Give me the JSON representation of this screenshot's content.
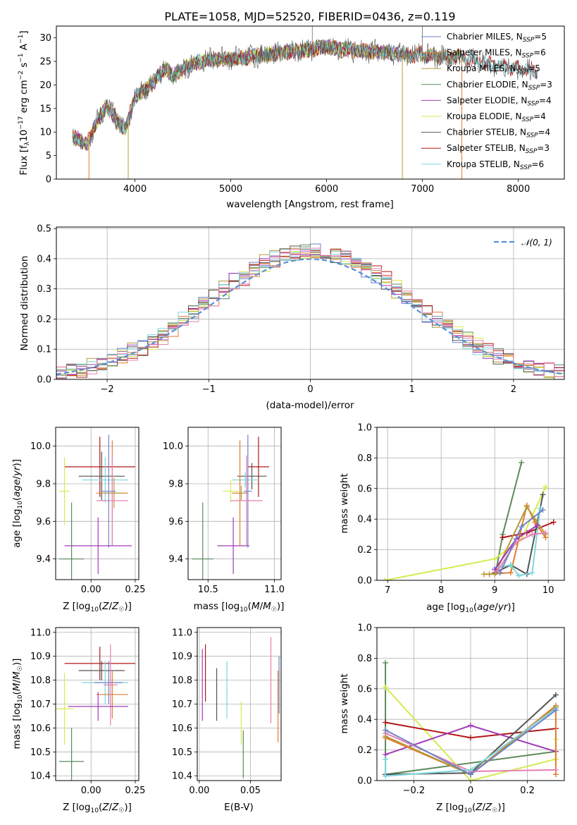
{
  "colors": {
    "Chabrier MILES": "#6f82c9",
    "Salpeter MILES": "#e07c2e",
    "Kroupa MILES": "#b89a3a",
    "Chabrier ELODIE": "#5c8a5c",
    "Salpeter ELODIE": "#a23bb8",
    "Kroupa ELODIE": "#d6ea4e",
    "Chabrier STELIB": "#555555",
    "Salpeter STELIB": "#b01818",
    "Kroupa STELIB": "#7dd6dc",
    "pink": "#e87fb4",
    "normal": "#5b8fd6"
  },
  "spectrum_data": {
    "type": "line",
    "title": "PLATE=1058, MJD=52520, FIBERID=0436, z=0.119",
    "xlabel": "wavelength [Angstrom, rest frame]",
    "ylabel": "Flux [f_λ 10^-17 erg cm^-2 s^-1 A^-1]",
    "xlim": [
      3180,
      8480
    ],
    "ylim": [
      0,
      32.5
    ],
    "xticks": [
      4000,
      5000,
      6000,
      7000,
      8000
    ],
    "yticks": [
      0,
      5,
      10,
      15,
      20,
      25,
      30
    ],
    "envelope": {
      "x": [
        3350,
        3500,
        3600,
        3700,
        3800,
        3900,
        4000,
        4100,
        4200,
        4300,
        4400,
        4600,
        4800,
        5000,
        5200,
        5400,
        5600,
        5800,
        6000,
        6200,
        6400,
        6600,
        6800,
        7000,
        7200,
        7400,
        7600,
        7800,
        8000,
        8200
      ],
      "y": [
        9.0,
        7.5,
        12.0,
        15.5,
        13.0,
        10.5,
        17.5,
        19.0,
        20.5,
        23.5,
        22.0,
        24.5,
        25.5,
        25.5,
        26.0,
        26.5,
        27.0,
        27.5,
        28.0,
        27.5,
        27.2,
        27.0,
        26.5,
        26.5,
        26.0,
        26.0,
        25.0,
        24.0,
        23.5,
        23.0
      ]
    },
    "series": [
      {
        "name": "Chabrier MILES, N_SSP=5",
        "color_key": "Chabrier MILES"
      },
      {
        "name": "Salpeter MILES, N_SSP=6",
        "color_key": "Salpeter MILES"
      },
      {
        "name": "Kroupa MILES, N_SSP=5",
        "color_key": "Kroupa MILES"
      },
      {
        "name": "Chabrier ELODIE, N_SSP=3",
        "color_key": "Chabrier ELODIE"
      },
      {
        "name": "Salpeter ELODIE, N_SSP=4",
        "color_key": "Salpeter ELODIE"
      },
      {
        "name": "Kroupa ELODIE, N_SSP=4",
        "color_key": "Kroupa ELODIE"
      },
      {
        "name": "Chabrier STELIB, N_SSP=4",
        "color_key": "Chabrier STELIB"
      },
      {
        "name": "Salpeter STELIB, N_SSP=3",
        "color_key": "Salpeter STELIB"
      },
      {
        "name": "Kroupa STELIB, N_SSP=6",
        "color_key": "Kroupa STELIB"
      }
    ]
  },
  "residual_data": {
    "type": "histogram",
    "xlabel": "(data-model)/error",
    "ylabel": "Normed distribution",
    "xlim": [
      -2.5,
      2.5
    ],
    "ylim": [
      0,
      0.505
    ],
    "xticks": [
      -2,
      -1,
      0,
      1,
      2
    ],
    "yticks": [
      0.0,
      0.1,
      0.2,
      0.3,
      0.4,
      0.5
    ],
    "legend": "N(0,1)",
    "bin_width": 0.1
  },
  "panels": {
    "age_vs_Z": {
      "xlabel": "Z [log10(Z/Z☉)]",
      "ylabel": "age [log10(age/yr)]",
      "xlim": [
        -0.2,
        0.27
      ],
      "ylim": [
        9.29,
        10.1
      ],
      "xticks": [
        0.0,
        0.25
      ],
      "yticks": [
        9.4,
        9.6,
        9.8,
        10.0
      ]
    },
    "age_vs_mass": {
      "xlabel": "mass [log10(M/M☉)]",
      "ylabel": "",
      "xlim": [
        10.35,
        11.05
      ],
      "ylim": [
        9.29,
        10.1
      ],
      "xticks": [
        10.5,
        11.0
      ],
      "yticks": [
        9.4,
        9.6,
        9.8,
        10.0
      ]
    },
    "mass_weight_vs_age": {
      "xlabel": "age [log10(age/yr)]",
      "ylabel": "mass weight",
      "xlim": [
        6.8,
        10.3
      ],
      "ylim": [
        0,
        1.0
      ],
      "xticks": [
        7,
        8,
        9,
        10
      ],
      "yticks": [
        0.0,
        0.2,
        0.4,
        0.6,
        0.8,
        1.0
      ]
    },
    "mass_vs_Z": {
      "xlabel": "Z [log10(Z/Z☉)]",
      "ylabel": "mass [log10(M/M☉)]",
      "xlim": [
        -0.2,
        0.27
      ],
      "ylim": [
        10.38,
        11.02
      ],
      "xticks": [
        0.0,
        0.25
      ],
      "yticks": [
        10.4,
        10.5,
        10.6,
        10.7,
        10.8,
        10.9,
        11.0
      ]
    },
    "mass_vs_ebv": {
      "xlabel": "E(B-V)",
      "ylabel": "",
      "xlim": [
        -0.002,
        0.08
      ],
      "ylim": [
        10.38,
        11.02
      ],
      "xticks": [
        0.0,
        0.05
      ],
      "yticks": [
        10.4,
        10.5,
        10.6,
        10.7,
        10.8,
        10.9,
        11.0
      ]
    },
    "mass_weight_vs_Z": {
      "xlabel": "Z [log10(Z/Z☉)]",
      "ylabel": "mass weight",
      "xlim": [
        -0.33,
        0.33
      ],
      "ylim": [
        0,
        1.0
      ],
      "xticks": [
        -0.2,
        0.0,
        0.2
      ],
      "yticks": [
        0.0,
        0.2,
        0.4,
        0.6,
        0.8,
        1.0
      ]
    }
  },
  "chart_data": [
    {
      "panel": "age_vs_Z",
      "type": "errorbar",
      "points": [
        {
          "c": "Salpeter STELIB",
          "x": 0.05,
          "y": 9.89,
          "xerr": 0.2,
          "yerr": 0.16
        },
        {
          "c": "Chabrier STELIB",
          "x": 0.06,
          "y": 9.84,
          "xerr": 0.13,
          "yerr": 0.13
        },
        {
          "c": "Kroupa STELIB",
          "x": 0.08,
          "y": 9.82,
          "xerr": 0.13,
          "yerr": 0.12
        },
        {
          "c": "Kroupa ELODIE",
          "x": -0.15,
          "y": 9.76,
          "xerr": 0.03,
          "yerr": 0.18
        },
        {
          "c": "Salpeter MILES",
          "x": 0.12,
          "y": 9.75,
          "xerr": 0.09,
          "yerr": 0.28
        },
        {
          "c": "Kroupa MILES",
          "x": 0.13,
          "y": 9.75,
          "xerr": 0.05,
          "yerr": 0.08
        },
        {
          "c": "pink",
          "x": 0.12,
          "y": 9.71,
          "xerr": 0.09,
          "yerr": 0.24
        },
        {
          "c": "Chabrier MILES",
          "x": 0.1,
          "y": 9.76,
          "xerr": 0.04,
          "yerr": 0.3
        },
        {
          "c": "Salpeter ELODIE",
          "x": 0.04,
          "y": 9.47,
          "xerr": 0.19,
          "yerr": 0.15
        },
        {
          "c": "Chabrier ELODIE",
          "x": -0.11,
          "y": 9.4,
          "xerr": 0.07,
          "yerr": 0.3
        }
      ]
    },
    {
      "panel": "age_vs_mass",
      "type": "errorbar",
      "points": [
        {
          "c": "Salpeter STELIB",
          "x": 10.88,
          "y": 9.89,
          "xerr": 0.08,
          "yerr": 0.16
        },
        {
          "c": "Chabrier STELIB",
          "x": 10.83,
          "y": 9.84,
          "xerr": 0.11,
          "yerr": 0.07
        },
        {
          "c": "Kroupa STELIB",
          "x": 10.78,
          "y": 9.82,
          "xerr": 0.1,
          "yerr": 0.04
        },
        {
          "c": "Kroupa ELODIE",
          "x": 10.67,
          "y": 9.76,
          "xerr": 0.06,
          "yerr": 0.06
        },
        {
          "c": "Salpeter MILES",
          "x": 10.74,
          "y": 9.75,
          "xerr": 0.06,
          "yerr": 0.28
        },
        {
          "c": "Kroupa MILES",
          "x": 10.75,
          "y": 9.75,
          "xerr": 0.04,
          "yerr": 0.04
        },
        {
          "c": "pink",
          "x": 10.79,
          "y": 9.71,
          "xerr": 0.12,
          "yerr": 0.24
        },
        {
          "c": "Chabrier MILES",
          "x": 10.8,
          "y": 9.76,
          "xerr": 0.03,
          "yerr": 0.3
        },
        {
          "c": "Salpeter ELODIE",
          "x": 10.69,
          "y": 9.47,
          "xerr": 0.12,
          "yerr": 0.15
        },
        {
          "c": "Chabrier ELODIE",
          "x": 10.46,
          "y": 9.4,
          "xerr": 0.08,
          "yerr": 0.3
        }
      ]
    },
    {
      "panel": "mass_weight_vs_age",
      "type": "line",
      "series": [
        {
          "c": "Chabrier ELODIE",
          "x": [
            9.02,
            9.15,
            9.5
          ],
          "y": [
            0.05,
            0.3,
            0.77
          ]
        },
        {
          "c": "Kroupa ELODIE",
          "x": [
            6.95,
            9.0,
            9.5,
            9.95
          ],
          "y": [
            0.0,
            0.14,
            0.27,
            0.61
          ]
        },
        {
          "c": "Salpeter STELIB",
          "x": [
            9.15,
            9.6,
            10.1
          ],
          "y": [
            0.28,
            0.31,
            0.38
          ]
        },
        {
          "c": "Chabrier STELIB",
          "x": [
            9.0,
            9.3,
            9.6,
            9.9
          ],
          "y": [
            0.05,
            0.1,
            0.04,
            0.56
          ]
        },
        {
          "c": "Salpeter MILES",
          "x": [
            8.9,
            9.3,
            9.6,
            9.75,
            9.95
          ],
          "y": [
            0.04,
            0.05,
            0.49,
            0.38,
            0.28
          ]
        },
        {
          "c": "Kroupa MILES",
          "x": [
            8.8,
            9.0,
            9.6,
            9.95
          ],
          "y": [
            0.04,
            0.04,
            0.48,
            0.3
          ]
        },
        {
          "c": "Kroupa STELIB",
          "x": [
            9.0,
            9.3,
            9.45,
            9.7,
            9.85
          ],
          "y": [
            0.08,
            0.1,
            0.03,
            0.05,
            0.47
          ]
        },
        {
          "c": "Salpeter ELODIE",
          "x": [
            9.0,
            9.4,
            9.8
          ],
          "y": [
            0.07,
            0.27,
            0.36
          ]
        },
        {
          "c": "pink",
          "x": [
            9.05,
            9.4,
            9.7,
            9.95
          ],
          "y": [
            0.06,
            0.25,
            0.3,
            0.31
          ]
        },
        {
          "c": "Chabrier MILES",
          "x": [
            9.1,
            9.5,
            9.9
          ],
          "y": [
            0.05,
            0.35,
            0.46
          ]
        }
      ]
    },
    {
      "panel": "mass_vs_Z",
      "type": "errorbar",
      "points": [
        {
          "c": "Salpeter STELIB",
          "x": 0.05,
          "y": 10.87,
          "xerr": 0.2,
          "yerr": 0.07
        },
        {
          "c": "Chabrier STELIB",
          "x": 0.06,
          "y": 10.84,
          "xerr": 0.13,
          "yerr": 0.04
        },
        {
          "c": "Kroupa STELIB",
          "x": 0.08,
          "y": 10.79,
          "xerr": 0.13,
          "yerr": 0.09
        },
        {
          "c": "Chabrier MILES",
          "x": 0.1,
          "y": 10.79,
          "xerr": 0.08,
          "yerr": 0.09
        },
        {
          "c": "Salpeter MILES",
          "x": 0.12,
          "y": 10.74,
          "xerr": 0.09,
          "yerr": 0.1
        },
        {
          "c": "pink",
          "x": 0.11,
          "y": 10.78,
          "xerr": 0.04,
          "yerr": 0.17
        },
        {
          "c": "Salpeter ELODIE",
          "x": 0.04,
          "y": 10.69,
          "xerr": 0.17,
          "yerr": 0.06
        },
        {
          "c": "Kroupa ELODIE",
          "x": -0.15,
          "y": 10.68,
          "xerr": 0.05,
          "yerr": 0.15
        },
        {
          "c": "Chabrier ELODIE",
          "x": -0.11,
          "y": 10.46,
          "xerr": 0.07,
          "yerr": 0.14
        }
      ]
    },
    {
      "panel": "mass_vs_ebv",
      "type": "errorbar",
      "points": [
        {
          "c": "Salpeter STELIB",
          "x": 0.006,
          "y": 10.83,
          "xerr": 0,
          "yerr": 0.12
        },
        {
          "c": "Salpeter ELODIE",
          "x": 0.003,
          "y": 10.78,
          "xerr": 0,
          "yerr": 0.15
        },
        {
          "c": "Chabrier STELIB",
          "x": 0.017,
          "y": 10.74,
          "xerr": 0,
          "yerr": 0.11
        },
        {
          "c": "Kroupa STELIB",
          "x": 0.027,
          "y": 10.76,
          "xerr": 0,
          "yerr": 0.12
        },
        {
          "c": "Kroupa ELODIE",
          "x": 0.041,
          "y": 10.62,
          "xerr": 0,
          "yerr": 0.09
        },
        {
          "c": "Chabrier ELODIE",
          "x": 0.043,
          "y": 10.49,
          "xerr": 0,
          "yerr": 0.1
        },
        {
          "c": "pink",
          "x": 0.07,
          "y": 10.8,
          "xerr": 0,
          "yerr": 0.18
        },
        {
          "c": "Salpeter MILES",
          "x": 0.077,
          "y": 10.69,
          "xerr": 0,
          "yerr": 0.15
        },
        {
          "c": "Chabrier MILES",
          "x": 0.078,
          "y": 10.78,
          "xerr": 0,
          "yerr": 0.12
        }
      ]
    },
    {
      "panel": "mass_weight_vs_Z",
      "type": "line",
      "series": [
        {
          "c": "Chabrier ELODIE",
          "x": [
            -0.3,
            -0.3,
            0.3
          ],
          "y": [
            0.77,
            0.04,
            0.19
          ]
        },
        {
          "c": "Kroupa ELODIE",
          "x": [
            -0.3,
            0.0,
            0.3,
            0.3
          ],
          "y": [
            0.61,
            0.0,
            0.14,
            0.27
          ]
        },
        {
          "c": "Salpeter STELIB",
          "x": [
            -0.3,
            0.0,
            0.3
          ],
          "y": [
            0.38,
            0.28,
            0.34
          ]
        },
        {
          "c": "Salpeter ELODIE",
          "x": [
            -0.3,
            0.0,
            0.3
          ],
          "y": [
            0.17,
            0.36,
            0.19
          ]
        },
        {
          "c": "Chabrier STELIB",
          "x": [
            -0.3,
            0.0,
            0.3
          ],
          "y": [
            0.04,
            0.05,
            0.56
          ]
        },
        {
          "c": "Salpeter MILES",
          "x": [
            -0.3,
            0.0,
            0.3,
            0.3
          ],
          "y": [
            0.28,
            0.04,
            0.49,
            0.04
          ]
        },
        {
          "c": "Kroupa MILES",
          "x": [
            -0.3,
            0.0,
            0.3
          ],
          "y": [
            0.29,
            0.04,
            0.48
          ]
        },
        {
          "c": "pink",
          "x": [
            -0.3,
            0.0,
            0.3
          ],
          "y": [
            0.31,
            0.06,
            0.07
          ]
        },
        {
          "c": "Kroupa STELIB",
          "x": [
            -0.3,
            -0.3,
            0.0,
            0.3
          ],
          "y": [
            0.14,
            0.03,
            0.07,
            0.47
          ]
        },
        {
          "c": "Chabrier MILES",
          "x": [
            -0.3,
            0.0,
            0.3
          ],
          "y": [
            0.33,
            0.04,
            0.46
          ]
        }
      ]
    }
  ]
}
